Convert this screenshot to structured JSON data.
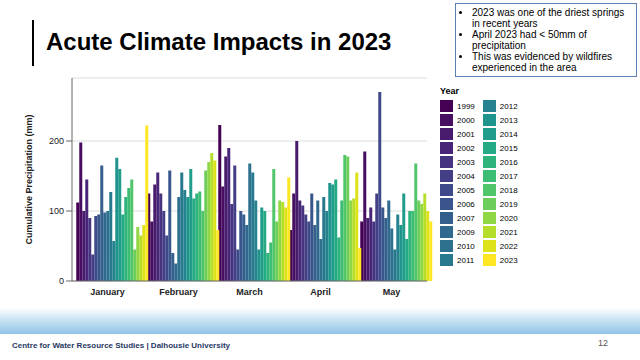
{
  "chart_data": {
    "type": "bar",
    "title": "Acute Climate Impacts in 2023",
    "annotations": [
      "2023 was one of the driest springs in recent years",
      "April 2023 had < 50mm of precipitation",
      "This was evidenced by wildfires experienced in the area"
    ],
    "footer": "Centre for Water Resource Studies | Dalhousie University",
    "page_number": "12",
    "y_label": "Cumulative Precipitation (mm)",
    "legend_title": "Year",
    "legend": "right",
    "grid": true,
    "categories": [
      "January",
      "February",
      "March",
      "April",
      "May"
    ],
    "ylim": [
      0,
      290
    ],
    "yticks": [
      0,
      100,
      200
    ],
    "series": [
      {
        "name": "1999",
        "color": "#440154",
        "values": [
          112,
          125,
          223,
          73,
          85
        ]
      },
      {
        "name": "2000",
        "color": "#470e61",
        "values": [
          198,
          85,
          135,
          125,
          185
        ]
      },
      {
        "name": "2001",
        "color": "#481b6d",
        "values": [
          100,
          138,
          178,
          200,
          90
        ]
      },
      {
        "name": "2002",
        "color": "#482576",
        "values": [
          145,
          155,
          190,
          115,
          105
        ]
      },
      {
        "name": "2003",
        "color": "#463480",
        "values": [
          90,
          125,
          110,
          108,
          85
        ]
      },
      {
        "name": "2004",
        "color": "#433e85",
        "values": [
          38,
          100,
          165,
          95,
          125
        ]
      },
      {
        "name": "2005",
        "color": "#3e4a89",
        "values": [
          93,
          65,
          45,
          85,
          270
        ]
      },
      {
        "name": "2006",
        "color": "#39558c",
        "values": [
          95,
          158,
          100,
          125,
          105
        ]
      },
      {
        "name": "2007",
        "color": "#355f8d",
        "values": [
          165,
          40,
          95,
          80,
          90
        ]
      },
      {
        "name": "2009",
        "color": "#31688e",
        "values": [
          98,
          25,
          80,
          115,
          115
        ]
      },
      {
        "name": "2010",
        "color": "#2d718e",
        "values": [
          100,
          120,
          168,
          60,
          75
        ]
      },
      {
        "name": "2011",
        "color": "#29798e",
        "values": [
          127,
          155,
          155,
          120,
          45
        ]
      },
      {
        "name": "2012",
        "color": "#26828e",
        "values": [
          57,
          130,
          115,
          100,
          95
        ]
      },
      {
        "name": "2013",
        "color": "#1f948c",
        "values": [
          176,
          120,
          45,
          140,
          80
        ]
      },
      {
        "name": "2014",
        "color": "#1f9d8a",
        "values": [
          160,
          160,
          105,
          138,
          125
        ]
      },
      {
        "name": "2015",
        "color": "#23a983",
        "values": [
          95,
          118,
          100,
          145,
          60
        ]
      },
      {
        "name": "2016",
        "color": "#2eb37c",
        "values": [
          120,
          125,
          40,
          62,
          100
        ]
      },
      {
        "name": "2017",
        "color": "#3dbc74",
        "values": [
          133,
          128,
          55,
          115,
          100
        ]
      },
      {
        "name": "2018",
        "color": "#51c56a",
        "values": [
          145,
          100,
          160,
          180,
          168
        ]
      },
      {
        "name": "2019",
        "color": "#6ccd5a",
        "values": [
          45,
          158,
          85,
          178,
          115
        ]
      },
      {
        "name": "2020",
        "color": "#8fd744",
        "values": [
          77,
          170,
          115,
          115,
          110
        ]
      },
      {
        "name": "2021",
        "color": "#b5de2b",
        "values": [
          65,
          183,
          113,
          118,
          125
        ]
      },
      {
        "name": "2022",
        "color": "#dde318",
        "values": [
          80,
          172,
          105,
          155,
          100
        ]
      },
      {
        "name": "2023",
        "color": "#fde725",
        "values": [
          222,
          73,
          148,
          47,
          85
        ]
      }
    ]
  }
}
